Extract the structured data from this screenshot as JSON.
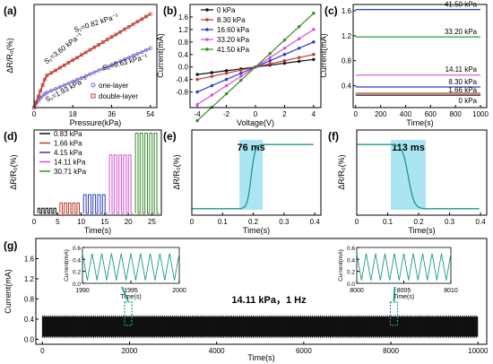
{
  "chart_data": [
    {
      "id": "a",
      "type": "scatter",
      "panel_label": "(a)",
      "xlabel": "Pressure(kPa)",
      "ylabel": "ΔR/R₀(%)",
      "xlim": [
        0,
        57
      ],
      "xticks": [
        0,
        18,
        36,
        54
      ],
      "series": [
        {
          "name": "one-layer",
          "color": "#6a5acd",
          "x": [
            0,
            1,
            2,
            3,
            4,
            5,
            6,
            8,
            10,
            12,
            14,
            16,
            18,
            20,
            22,
            24,
            26,
            28,
            30,
            32,
            34,
            36,
            38,
            40,
            42,
            44,
            46,
            48,
            50,
            52,
            54
          ],
          "y": [
            0,
            2.2,
            4.4,
            6.2,
            7.6,
            8.8,
            9.6,
            10.8,
            11.9,
            13.1,
            14.3,
            15.5,
            16.7,
            17.9,
            19.0,
            20.2,
            21.4,
            22.6,
            23.8,
            24.9,
            26.1,
            27.3,
            28.5,
            29.7,
            30.8,
            32.0,
            33.2,
            34.4,
            35.6,
            36.8,
            38.0
          ]
        },
        {
          "name": "double-layer",
          "color": "#c0392b",
          "x": [
            0,
            1,
            2,
            3,
            4,
            5,
            6,
            8,
            10,
            12,
            14,
            16,
            18,
            20,
            22,
            24,
            26,
            28,
            30,
            32,
            34,
            36,
            38,
            40,
            42,
            44,
            46,
            48,
            50,
            52,
            54
          ],
          "y": [
            0,
            3.6,
            7.2,
            10.8,
            14.4,
            18.0,
            20.6,
            22.2,
            23.8,
            25.5,
            27.1,
            28.8,
            30.4,
            32.0,
            33.7,
            35.3,
            37.0,
            38.6,
            40.2,
            41.9,
            43.5,
            45.2,
            46.8,
            48.4,
            50.1,
            51.7,
            53.4,
            55.0,
            56.6,
            58.3,
            59.9
          ]
        }
      ],
      "annotations": [
        {
          "text": "S₁=3.60 kPa⁻¹",
          "color": "#c0392b"
        },
        {
          "text": "S₂=0.82 kPa⁻¹",
          "color": "#c0392b"
        },
        {
          "text": "S₁=1.93 kPa⁻¹",
          "color": "#6a5acd"
        },
        {
          "text": "S₂=0.63 kPa⁻¹",
          "color": "#6a5acd"
        }
      ]
    },
    {
      "id": "b",
      "type": "line",
      "panel_label": "(b)",
      "xlabel": "Voltage(V)",
      "ylabel": "Current(mA)",
      "xlim": [
        -4.5,
        4.5
      ],
      "ylim": [
        -1.3,
        2.0
      ],
      "xticks": [
        -4,
        -2,
        0,
        2,
        4
      ],
      "yticks": [
        -0.8,
        -0.4,
        0.0,
        0.4,
        0.8,
        1.2,
        1.6
      ],
      "x": [
        -4,
        -3,
        -2,
        -1,
        0,
        1,
        2,
        3,
        4
      ],
      "series": [
        {
          "name": "0 kPa",
          "color": "#111111",
          "slope": 0.06
        },
        {
          "name": "8.30 kPa",
          "color": "#c0392b",
          "slope": 0.1
        },
        {
          "name": "16.60 kPa",
          "color": "#2c3ebf",
          "slope": 0.2
        },
        {
          "name": "33.20 kPa",
          "color": "#d64fd6",
          "slope": 0.3
        },
        {
          "name": "41.50 kPa",
          "color": "#3a8a2a",
          "slope": 0.43
        }
      ]
    },
    {
      "id": "c",
      "type": "line",
      "panel_label": "(c)",
      "xlabel": "Time(s)",
      "ylabel": "Current(mA)",
      "xlim": [
        -20,
        1050
      ],
      "ylim": [
        0.05,
        1.7
      ],
      "xticks": [
        0,
        200,
        400,
        600,
        800,
        1000
      ],
      "yticks": [
        0.4,
        0.8,
        1.2,
        1.6
      ],
      "series": [
        {
          "name": "41.50 kPa",
          "color": "#1f3fbf",
          "value": 1.62
        },
        {
          "name": "33.20 kPa",
          "color": "#1a8a2a",
          "value": 1.18
        },
        {
          "name": "14.11 kPa",
          "color": "#d64fd6",
          "value": 0.57
        },
        {
          "name": "8.30 kPa",
          "color": "#2c3ebf",
          "value": 0.38
        },
        {
          "name": "1.66 kPa",
          "color": "#c0392b",
          "value": 0.28
        },
        {
          "name": "0 kPa",
          "color": "#111111",
          "value": 0.25
        }
      ]
    },
    {
      "id": "d",
      "type": "line",
      "panel_label": "(d)",
      "xlabel": "Time(s)",
      "ylabel": "ΔR/R₀(%)",
      "xlim": [
        0,
        27
      ],
      "ylim": [
        0,
        80
      ],
      "xticks": [
        0,
        5,
        10,
        15,
        20,
        25
      ],
      "series": [
        {
          "name": "0.83 kPa",
          "color": "#111111",
          "start": 0.8,
          "end": 5,
          "amplitude": 5
        },
        {
          "name": "1.66 kPa",
          "color": "#c0392b",
          "start": 5.5,
          "end": 10,
          "amplitude": 10
        },
        {
          "name": "4.15 kPa",
          "color": "#2c3ebf",
          "start": 10.5,
          "end": 15.5,
          "amplitude": 18
        },
        {
          "name": "14.11 kPa",
          "color": "#d64fd6",
          "start": 16,
          "end": 21,
          "amplitude": 56
        },
        {
          "name": "30.71 kPa",
          "color": "#3a8a2a",
          "start": 21.5,
          "end": 26.5,
          "amplitude": 77
        }
      ]
    },
    {
      "id": "e",
      "type": "line",
      "panel_label": "(e)",
      "xlabel": "Time(s)",
      "ylabel": "ΔR/R₀(%)",
      "xlim": [
        0,
        0.42
      ],
      "xticks": [
        0,
        0.1,
        0.2,
        0.3,
        0.4
      ],
      "annotation": "76 ms",
      "highlight": [
        0.155,
        0.231
      ],
      "color": "#1a9a8a",
      "transition": "rise"
    },
    {
      "id": "f",
      "type": "line",
      "panel_label": "(f)",
      "xlabel": "Time(s)",
      "ylabel": "ΔR/R₀(%)",
      "xlim": [
        0,
        0.42
      ],
      "xticks": [
        0,
        0.1,
        0.2,
        0.3,
        0.4
      ],
      "annotation": "113 ms",
      "highlight": [
        0.11,
        0.223
      ],
      "color": "#1a9a8a",
      "transition": "fall"
    },
    {
      "id": "g",
      "type": "line",
      "panel_label": "(g)",
      "xlabel": "Time(s)",
      "ylabel": "Current(mA)",
      "xlim": [
        -150,
        10200
      ],
      "ylim": [
        -0.1,
        2.0
      ],
      "xticks": [
        0,
        2000,
        4000,
        6000,
        8000,
        10000
      ],
      "yticks": [
        0.0,
        0.4,
        0.8,
        1.2,
        1.6
      ],
      "annotation": "14.11 kPa，1 Hz",
      "signal": {
        "min": 0.05,
        "max": 0.45,
        "start": 0,
        "end": 10000
      },
      "insets": [
        {
          "xticks": [
            1990,
            1995,
            2000
          ],
          "xlim": [
            1990,
            2000
          ],
          "yticks": [
            0.0,
            0.2,
            0.4,
            0.6
          ],
          "ylim": [
            0,
            0.6
          ],
          "xlabel": "Time(s)",
          "ylabel": "Current(mA)",
          "min": 0.05,
          "max": 0.5
        },
        {
          "xticks": [
            8000,
            8005,
            8010
          ],
          "xlim": [
            8000,
            8010
          ],
          "yticks": [
            0.0,
            0.2,
            0.4,
            0.6
          ],
          "ylim": [
            0,
            0.6
          ],
          "xlabel": "Time(s)",
          "ylabel": "Current(mA)",
          "min": 0.05,
          "max": 0.5
        }
      ],
      "highlight_regions": [
        1950,
        8050
      ]
    }
  ]
}
